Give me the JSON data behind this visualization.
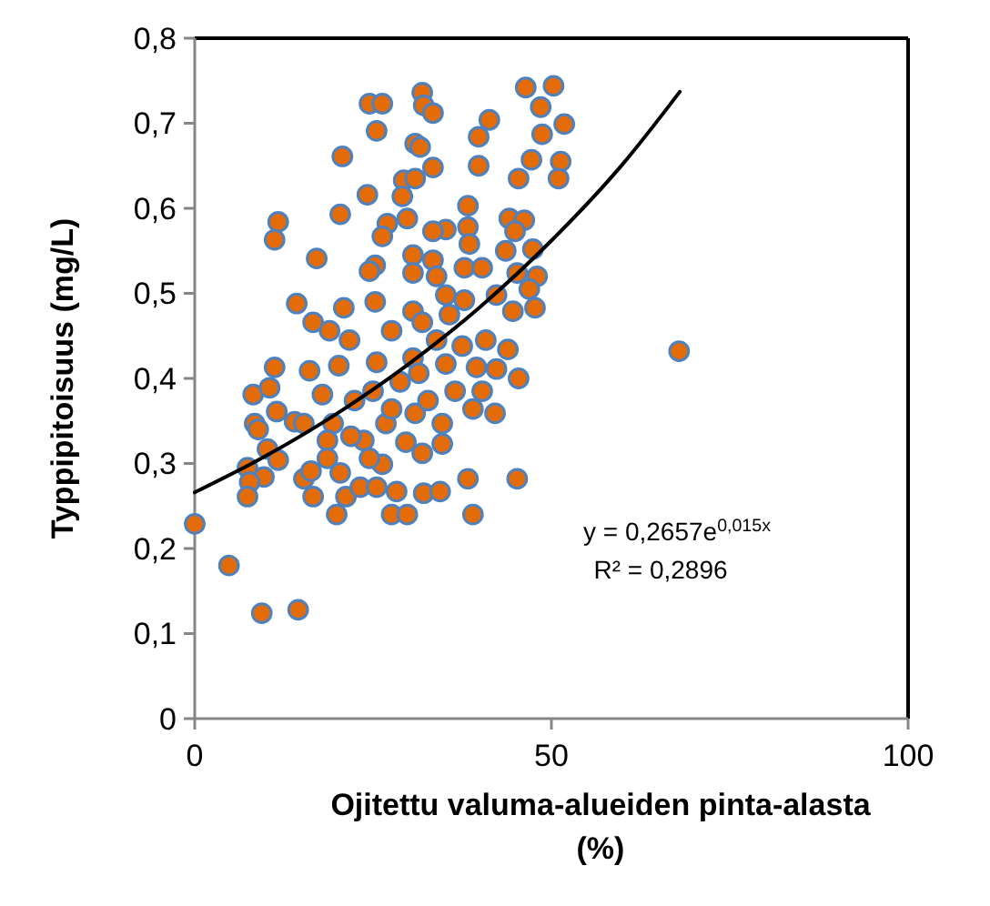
{
  "chart_data": {
    "type": "scatter",
    "xlabel": "Ojitettu valuma-alueiden pinta-alasta (%)",
    "ylabel": "Typpipitoisuus (mg/L)",
    "annotations": [
      "y = 0,2657e$^{0,015x}$",
      "R² = 0,2896"
    ],
    "xlim": [
      0,
      100
    ],
    "xticks": [
      0,
      50,
      100
    ],
    "ylim": [
      0,
      0.8
    ],
    "yticks": [
      0,
      {
        "value": 0.1,
        "label": "0,1"
      },
      {
        "value": 0.2,
        "label": "0,2"
      },
      {
        "value": 0.3,
        "label": "0,3"
      },
      {
        "value": 0.4,
        "label": "0,4"
      },
      {
        "value": 0.5,
        "label": "0,5"
      },
      {
        "value": 0.6,
        "label": "0,6"
      },
      {
        "value": 0.7,
        "label": "0,7"
      },
      {
        "value": 0.8,
        "label": "0,8"
      }
    ],
    "grid": false,
    "marker": "circle",
    "series": [
      {
        "color": "#e36c09",
        "x": [
          24.5,
          26.3,
          31.9,
          32.1,
          33.4,
          41.3,
          25.5,
          30.9,
          31.6,
          20.7,
          33.4,
          39.8,
          39.8,
          46.4,
          50.3,
          48.5,
          48.7,
          51.8,
          47.2,
          51.3,
          51.0,
          45.4,
          29.3,
          30.9,
          24.2,
          29.1,
          20.4,
          11.7,
          11.2,
          38.3,
          27.0,
          29.8,
          35.2,
          38.3,
          44.1,
          46.2,
          44.9,
          26.3,
          33.4,
          38.5,
          17.1,
          30.6,
          33.4,
          43.6,
          47.4,
          25.3,
          24.5,
          30.6,
          37.8,
          40.3,
          45.2,
          48.0,
          33.9,
          46.9,
          14.3,
          20.9,
          16.6,
          18.9,
          25.3,
          30.6,
          37.8,
          44.6,
          47.7,
          42.3,
          35.2,
          35.7,
          31.9,
          27.6,
          21.7,
          33.9,
          37.5,
          40.8,
          43.9,
          11.2,
          16.1,
          20.2,
          25.5,
          30.6,
          39.5,
          42.3,
          45.4,
          67.9,
          8.2,
          10.5,
          17.9,
          11.5,
          8.4,
          8.9,
          14.0,
          15.3,
          19.4,
          26.8,
          30.9,
          34.7,
          42.1,
          10.2,
          11.7,
          7.4,
          9.7,
          7.7,
          7.4,
          15.3,
          16.3,
          16.6,
          18.6,
          18.6,
          20.4,
          19.9,
          21.2,
          23.2,
          25.5,
          28.3,
          27.6,
          29.8,
          31.9,
          34.7,
          32.1,
          34.4,
          38.3,
          39.0,
          45.2,
          23.7,
          26.3,
          24.5,
          21.9,
          29.6,
          0,
          4.8,
          9.4,
          14.5,
          25.0,
          28.8,
          32.7,
          36.5,
          39.0,
          22.4,
          27.6,
          31.4,
          35.2,
          40.3
        ],
        "values": [
          0.723,
          0.723,
          0.736,
          0.721,
          0.712,
          0.704,
          0.691,
          0.676,
          0.672,
          0.661,
          0.648,
          0.684,
          0.65,
          0.742,
          0.744,
          0.719,
          0.687,
          0.699,
          0.657,
          0.655,
          0.635,
          0.635,
          0.633,
          0.635,
          0.616,
          0.614,
          0.593,
          0.584,
          0.563,
          0.603,
          0.582,
          0.588,
          0.575,
          0.578,
          0.588,
          0.586,
          0.573,
          0.567,
          0.573,
          0.558,
          0.541,
          0.545,
          0.539,
          0.55,
          0.552,
          0.533,
          0.526,
          0.524,
          0.53,
          0.53,
          0.524,
          0.52,
          0.52,
          0.505,
          0.488,
          0.483,
          0.466,
          0.456,
          0.49,
          0.479,
          0.492,
          0.479,
          0.483,
          0.498,
          0.498,
          0.475,
          0.466,
          0.456,
          0.445,
          0.445,
          0.438,
          0.445,
          0.434,
          0.413,
          0.409,
          0.415,
          0.419,
          0.424,
          0.413,
          0.411,
          0.4,
          0.432,
          0.381,
          0.389,
          0.381,
          0.361,
          0.347,
          0.34,
          0.349,
          0.347,
          0.347,
          0.347,
          0.359,
          0.347,
          0.359,
          0.317,
          0.304,
          0.295,
          0.284,
          0.278,
          0.261,
          0.282,
          0.291,
          0.261,
          0.327,
          0.306,
          0.289,
          0.24,
          0.261,
          0.272,
          0.272,
          0.267,
          0.24,
          0.24,
          0.312,
          0.323,
          0.265,
          0.267,
          0.282,
          0.24,
          0.282,
          0.327,
          0.299,
          0.306,
          0.332,
          0.325,
          0.229,
          0.18,
          0.124,
          0.128,
          0.385,
          0.396,
          0.374,
          0.385,
          0.364,
          0.374,
          0.364,
          0.406,
          0.417,
          0.385
        ]
      },
      {
        "type": "line",
        "color": "#000000",
        "marker": "none",
        "x": [
          0,
          10,
          20,
          30,
          40,
          50,
          60,
          68
        ],
        "values": [
          0.266,
          0.309,
          0.359,
          0.417,
          0.484,
          0.562,
          0.652,
          0.737
        ]
      }
    ]
  }
}
